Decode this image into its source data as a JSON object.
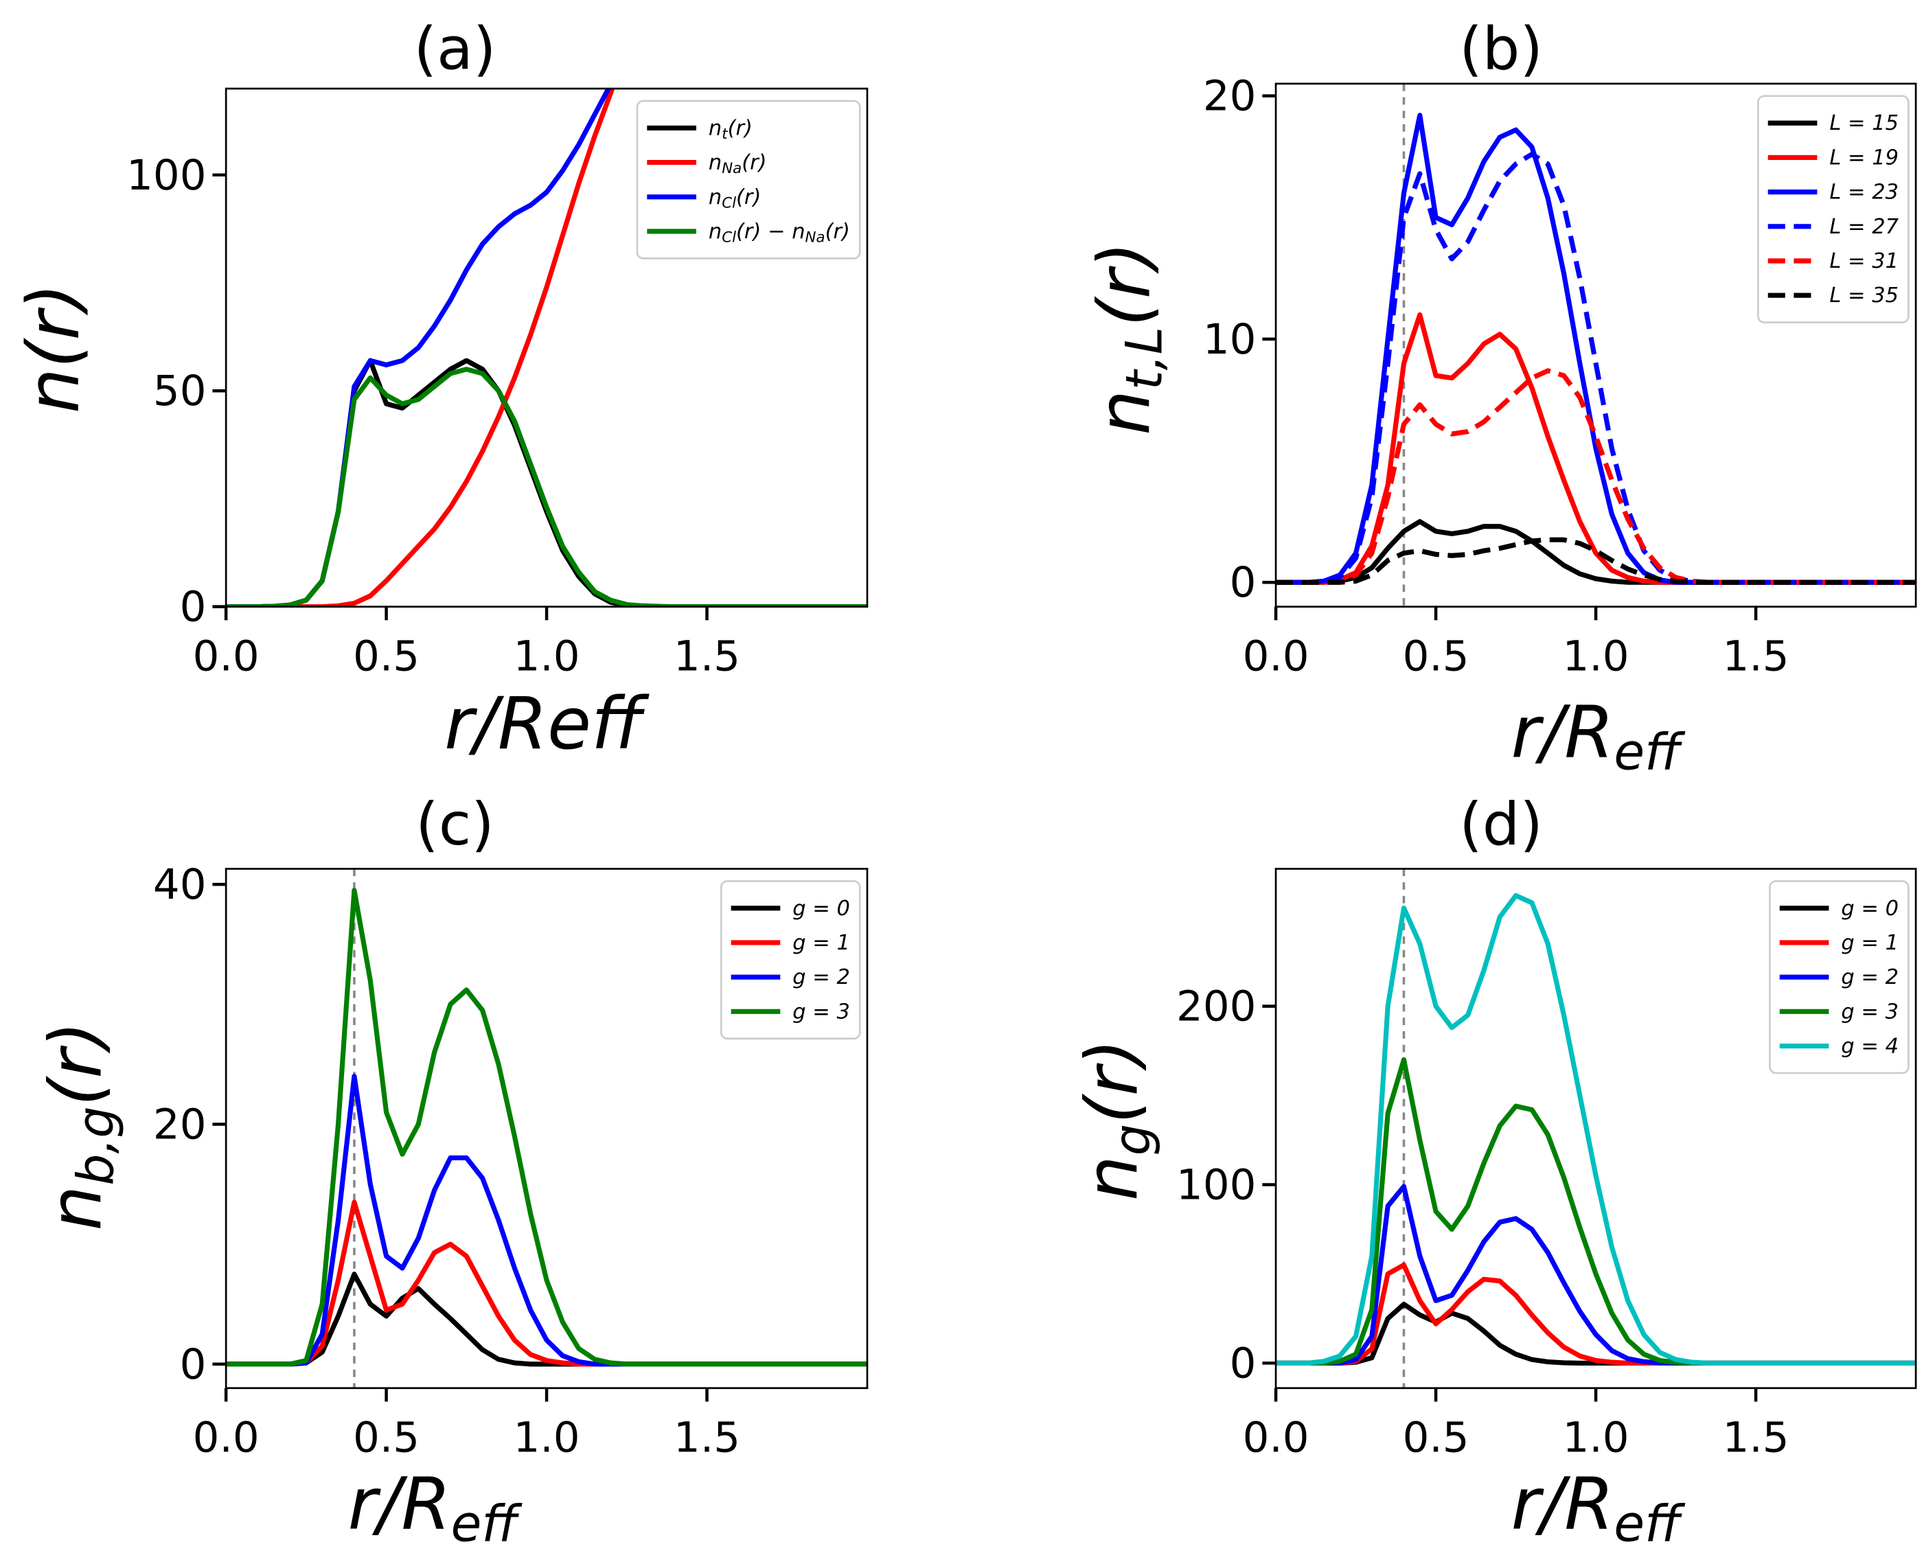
{
  "chart_data": [
    {
      "type": "line",
      "title": "(a)",
      "xlabel": "r/Reff",
      "ylabel": "n(r)",
      "x": [
        0,
        0.05,
        0.1,
        0.15,
        0.2,
        0.25,
        0.3,
        0.35,
        0.4,
        0.45,
        0.5,
        0.55,
        0.6,
        0.65,
        0.7,
        0.75,
        0.8,
        0.85,
        0.9,
        0.95,
        1.0,
        1.05,
        1.1,
        1.15,
        1.2,
        1.25,
        1.3,
        1.35,
        1.4,
        1.45,
        1.5,
        1.55,
        1.6,
        1.65,
        1.7,
        1.75,
        1.8,
        1.85,
        1.9,
        1.95,
        2.0
      ],
      "xlim": [
        0,
        2
      ],
      "xticks": [
        {
          "value": 0,
          "label": "0.0"
        },
        {
          "value": 0.5,
          "label": "0.5"
        },
        {
          "value": 1,
          "label": "1.0"
        },
        {
          "value": 1.5,
          "label": "1.5"
        }
      ],
      "ylim": [
        0,
        120
      ],
      "yticks": [
        0,
        50,
        100
      ],
      "legend": "upper right",
      "series": [
        {
          "name": "n_{t}(r)",
          "color": "#000000",
          "dash": false,
          "values": [
            0,
            0,
            0,
            0.1,
            0.4,
            1.5,
            6,
            22,
            50,
            57,
            47,
            46,
            49,
            52,
            55,
            57,
            55,
            50,
            42,
            32,
            22,
            13,
            7,
            3,
            1,
            0.3,
            0.1,
            0,
            0,
            0,
            0,
            0,
            0,
            0,
            0,
            0,
            0,
            0,
            0,
            0,
            0
          ]
        },
        {
          "name": "n_{Na}(r)",
          "color": "#ff0000",
          "dash": false,
          "values": [
            0,
            0,
            0,
            0,
            0,
            0,
            0,
            0.2,
            0.8,
            2.5,
            6,
            10,
            14,
            18,
            23,
            29,
            36,
            44,
            53,
            63,
            74,
            86,
            98,
            109,
            119,
            130,
            null,
            null,
            null,
            null,
            null,
            null,
            null,
            null,
            null,
            null,
            null,
            null,
            null,
            null,
            null
          ]
        },
        {
          "name": "n_{Cl}(r)",
          "color": "#0000ff",
          "dash": false,
          "values": [
            0,
            0,
            0,
            0.1,
            0.4,
            1.5,
            6,
            22,
            51,
            57,
            56,
            57,
            60,
            65,
            71,
            78,
            84,
            88,
            91,
            93,
            96,
            101,
            107,
            114,
            121,
            null,
            null,
            null,
            null,
            null,
            null,
            null,
            null,
            null,
            null,
            null,
            null,
            null,
            null,
            null,
            null
          ]
        },
        {
          "name": "n_{Cl}(r) − n_{Na}(r)",
          "color": "#008000",
          "dash": false,
          "values": [
            0,
            0,
            0,
            0.1,
            0.4,
            1.5,
            6,
            22,
            48,
            53,
            49,
            47,
            48,
            51,
            54,
            55,
            54,
            50,
            43,
            33,
            23,
            14,
            8,
            3.5,
            1.5,
            0.5,
            0.2,
            0.1,
            0,
            0,
            0,
            0,
            0,
            0,
            0,
            0,
            0,
            0,
            0,
            0,
            0
          ]
        }
      ]
    },
    {
      "type": "line",
      "title": "(b)",
      "xlabel": "r/R_{eff}",
      "ylabel": "n_{t,L}(r)",
      "x": [
        0,
        0.05,
        0.1,
        0.15,
        0.2,
        0.25,
        0.3,
        0.35,
        0.4,
        0.45,
        0.5,
        0.55,
        0.6,
        0.65,
        0.7,
        0.75,
        0.8,
        0.85,
        0.9,
        0.95,
        1.0,
        1.05,
        1.1,
        1.15,
        1.2,
        1.25,
        1.3,
        1.35,
        1.4,
        1.45,
        1.5,
        1.55,
        1.6,
        1.65,
        1.7,
        1.75,
        1.8,
        1.85,
        1.9,
        1.95,
        2.0
      ],
      "xlim": [
        0,
        2
      ],
      "xticks": [
        {
          "value": 0,
          "label": "0.0"
        },
        {
          "value": 0.5,
          "label": "0.5"
        },
        {
          "value": 1,
          "label": "1.0"
        },
        {
          "value": 1.5,
          "label": "1.5"
        }
      ],
      "ylim": [
        -1,
        20.5
      ],
      "yticks": [
        0,
        10,
        20
      ],
      "legend": "upper right",
      "vline": 0.4,
      "series": [
        {
          "name": "L = 15",
          "color": "#000000",
          "dash": false,
          "values": [
            0,
            0,
            0,
            0,
            0.05,
            0.2,
            0.6,
            1.4,
            2.1,
            2.5,
            2.1,
            2.0,
            2.1,
            2.3,
            2.3,
            2.1,
            1.7,
            1.2,
            0.7,
            0.35,
            0.15,
            0.05,
            0,
            0,
            0,
            0,
            0,
            0,
            0,
            0,
            0,
            0,
            0,
            0,
            0,
            0,
            0,
            0,
            0,
            0,
            0
          ]
        },
        {
          "name": "L = 19",
          "color": "#ff0000",
          "dash": false,
          "values": [
            0,
            0,
            0,
            0,
            0.1,
            0.4,
            1.5,
            4,
            9,
            11,
            8.5,
            8.4,
            9,
            9.8,
            10.2,
            9.6,
            8,
            6,
            4.2,
            2.5,
            1.2,
            0.5,
            0.2,
            0.05,
            0,
            0,
            0,
            0,
            0,
            0,
            0,
            0,
            0,
            0,
            0,
            0,
            0,
            0,
            0,
            0,
            0
          ]
        },
        {
          "name": "L = 23",
          "color": "#0000ff",
          "dash": false,
          "values": [
            0,
            0,
            0,
            0.05,
            0.3,
            1.2,
            4,
            10,
            16,
            19.2,
            15,
            14.7,
            15.8,
            17.3,
            18.3,
            18.6,
            17.9,
            15.8,
            12.7,
            9,
            5.5,
            2.8,
            1.2,
            0.4,
            0.1,
            0,
            0,
            0,
            0,
            0,
            0,
            0,
            0,
            0,
            0,
            0,
            0,
            0,
            0,
            0,
            0
          ]
        },
        {
          "name": "L = 27",
          "color": "#0000ff",
          "dash": true,
          "values": [
            0,
            0,
            0,
            0,
            0.2,
            1,
            3.5,
            9,
            15,
            16.8,
            14.5,
            13.3,
            14,
            15.3,
            16.5,
            17.2,
            17.6,
            17.2,
            15.5,
            12.5,
            9,
            5.5,
            3,
            1.3,
            0.5,
            0.15,
            0.05,
            0,
            0,
            0,
            0,
            0,
            0,
            0,
            0,
            0,
            0,
            0,
            0,
            0,
            0
          ]
        },
        {
          "name": "L = 31",
          "color": "#ff0000",
          "dash": true,
          "values": [
            0,
            0,
            0,
            0,
            0,
            0.3,
            1.2,
            3.5,
            6.5,
            7.3,
            6.5,
            6.1,
            6.2,
            6.6,
            7.2,
            7.8,
            8.4,
            8.7,
            8.5,
            7.6,
            6,
            4.2,
            2.6,
            1.4,
            0.6,
            0.2,
            0.05,
            0,
            0,
            0,
            0,
            0,
            0,
            0,
            0,
            0,
            0,
            0,
            0,
            0,
            0
          ]
        },
        {
          "name": "L = 35",
          "color": "#000000",
          "dash": true,
          "values": [
            0,
            0,
            0,
            0,
            0,
            0.05,
            0.3,
            0.9,
            1.2,
            1.3,
            1.15,
            1.1,
            1.15,
            1.3,
            1.4,
            1.55,
            1.7,
            1.75,
            1.75,
            1.6,
            1.3,
            0.9,
            0.55,
            0.3,
            0.12,
            0.04,
            0,
            0,
            0,
            0,
            0,
            0,
            0,
            0,
            0,
            0,
            0,
            0,
            0,
            0,
            0
          ]
        }
      ]
    },
    {
      "type": "line",
      "title": "(c)",
      "xlabel": "r/R_{eff}",
      "ylabel": "n_{b,g}(r)",
      "x": [
        0,
        0.05,
        0.1,
        0.15,
        0.2,
        0.25,
        0.3,
        0.35,
        0.4,
        0.45,
        0.5,
        0.55,
        0.6,
        0.65,
        0.7,
        0.75,
        0.8,
        0.85,
        0.9,
        0.95,
        1.0,
        1.05,
        1.1,
        1.15,
        1.2,
        1.25,
        1.3,
        1.35,
        1.4,
        1.45,
        1.5,
        1.55,
        1.6,
        1.65,
        1.7,
        1.75,
        1.8,
        1.85,
        1.9,
        1.95,
        2.0
      ],
      "xlim": [
        0,
        2
      ],
      "xticks": [
        {
          "value": 0,
          "label": "0.0"
        },
        {
          "value": 0.5,
          "label": "0.5"
        },
        {
          "value": 1,
          "label": "1.0"
        },
        {
          "value": 1.5,
          "label": "1.5"
        }
      ],
      "ylim": [
        -2,
        41.3
      ],
      "yticks": [
        0,
        20,
        40
      ],
      "legend": "upper right",
      "vline": 0.4,
      "series": [
        {
          "name": "g = 0",
          "color": "#000000",
          "dash": false,
          "values": [
            0,
            0,
            0,
            0,
            0,
            0.1,
            1,
            4,
            7.5,
            5,
            4,
            5.5,
            6.3,
            5,
            3.8,
            2.5,
            1.2,
            0.4,
            0.1,
            0,
            0,
            0,
            0,
            0,
            0,
            0,
            0,
            0,
            0,
            0,
            0,
            0,
            0,
            0,
            0,
            0,
            0,
            0,
            0,
            0,
            0
          ]
        },
        {
          "name": "g = 1",
          "color": "#ff0000",
          "dash": false,
          "values": [
            0,
            0,
            0,
            0,
            0,
            0.1,
            1.5,
            7,
            13.5,
            9,
            4.5,
            5,
            7,
            9.3,
            10,
            9,
            6.5,
            4,
            2,
            0.8,
            0.3,
            0.1,
            0,
            0,
            0,
            0,
            0,
            0,
            0,
            0,
            0,
            0,
            0,
            0,
            0,
            0,
            0,
            0,
            0,
            0,
            0
          ]
        },
        {
          "name": "g = 2",
          "color": "#0000ff",
          "dash": false,
          "values": [
            0,
            0,
            0,
            0,
            0,
            0.1,
            2.5,
            12,
            24,
            15,
            9,
            8,
            10.5,
            14.5,
            17.2,
            17.2,
            15.5,
            12,
            8,
            4.5,
            2,
            0.7,
            0.2,
            0,
            0,
            0,
            0,
            0,
            0,
            0,
            0,
            0,
            0,
            0,
            0,
            0,
            0,
            0,
            0,
            0,
            0
          ]
        },
        {
          "name": "g = 3",
          "color": "#008000",
          "dash": false,
          "values": [
            0,
            0,
            0,
            0,
            0,
            0.3,
            5,
            20,
            39.5,
            32,
            21,
            17.5,
            20,
            26,
            30,
            31.2,
            29.5,
            25,
            19,
            12.5,
            7,
            3.5,
            1.3,
            0.4,
            0.1,
            0,
            0,
            0,
            0,
            0,
            0,
            0,
            0,
            0,
            0,
            0,
            0,
            0,
            0,
            0,
            0
          ]
        }
      ]
    },
    {
      "type": "line",
      "title": "(d)",
      "xlabel": "r/R_{eff}",
      "ylabel": "n_{g}(r)",
      "x": [
        0,
        0.05,
        0.1,
        0.15,
        0.2,
        0.25,
        0.3,
        0.35,
        0.4,
        0.45,
        0.5,
        0.55,
        0.6,
        0.65,
        0.7,
        0.75,
        0.8,
        0.85,
        0.9,
        0.95,
        1.0,
        1.05,
        1.1,
        1.15,
        1.2,
        1.25,
        1.3,
        1.35,
        1.4,
        1.45,
        1.5,
        1.55,
        1.6,
        1.65,
        1.7,
        1.75,
        1.8,
        1.85,
        1.9,
        1.95,
        2.0
      ],
      "xlim": [
        0,
        2
      ],
      "xticks": [
        {
          "value": 0,
          "label": "0.0"
        },
        {
          "value": 0.5,
          "label": "0.5"
        },
        {
          "value": 1,
          "label": "1.0"
        },
        {
          "value": 1.5,
          "label": "1.5"
        }
      ],
      "ylim": [
        -14,
        277
      ],
      "yticks": [
        0,
        100,
        200
      ],
      "legend": "upper right",
      "vline": 0.4,
      "series": [
        {
          "name": "g = 0",
          "color": "#000000",
          "dash": false,
          "values": [
            0,
            0,
            0,
            0,
            0,
            0.5,
            3,
            25,
            33,
            27,
            23,
            28,
            25,
            18,
            10,
            5,
            2,
            0.7,
            0.2,
            0,
            0,
            0,
            0,
            0,
            0,
            0,
            0,
            0,
            0,
            0,
            0,
            0,
            0,
            0,
            0,
            0,
            0,
            0,
            0,
            0,
            0
          ]
        },
        {
          "name": "g = 1",
          "color": "#ff0000",
          "dash": false,
          "values": [
            0,
            0,
            0,
            0,
            0,
            1,
            8,
            50,
            55,
            35,
            22,
            30,
            40,
            47,
            46,
            38,
            27,
            17,
            9,
            4,
            1.5,
            0.5,
            0,
            0,
            0,
            0,
            0,
            0,
            0,
            0,
            0,
            0,
            0,
            0,
            0,
            0,
            0,
            0,
            0,
            0,
            0
          ]
        },
        {
          "name": "g = 2",
          "color": "#0000ff",
          "dash": false,
          "values": [
            0,
            0,
            0,
            0,
            0,
            2,
            15,
            88,
            99,
            60,
            35,
            38,
            52,
            68,
            79,
            81,
            75,
            62,
            45,
            29,
            16,
            7,
            2.5,
            0.8,
            0.2,
            0,
            0,
            0,
            0,
            0,
            0,
            0,
            0,
            0,
            0,
            0,
            0,
            0,
            0,
            0,
            0
          ]
        },
        {
          "name": "g = 3",
          "color": "#008000",
          "dash": false,
          "values": [
            0,
            0,
            0,
            0,
            1,
            5,
            30,
            140,
            170,
            125,
            85,
            75,
            88,
            112,
            133,
            144,
            142,
            128,
            104,
            76,
            50,
            28,
            13,
            5,
            1.5,
            0.4,
            0,
            0,
            0,
            0,
            0,
            0,
            0,
            0,
            0,
            0,
            0,
            0,
            0,
            0,
            0
          ]
        },
        {
          "name": "g = 4",
          "color": "#00bfbf",
          "dash": false,
          "values": [
            0,
            0,
            0,
            1,
            4,
            15,
            60,
            200,
            255,
            235,
            200,
            188,
            195,
            220,
            250,
            262,
            258,
            235,
            195,
            150,
            105,
            65,
            35,
            16,
            6,
            2,
            0.5,
            0,
            0,
            0,
            0,
            0,
            0,
            0,
            0,
            0,
            0,
            0,
            0,
            0,
            0
          ]
        }
      ]
    }
  ]
}
